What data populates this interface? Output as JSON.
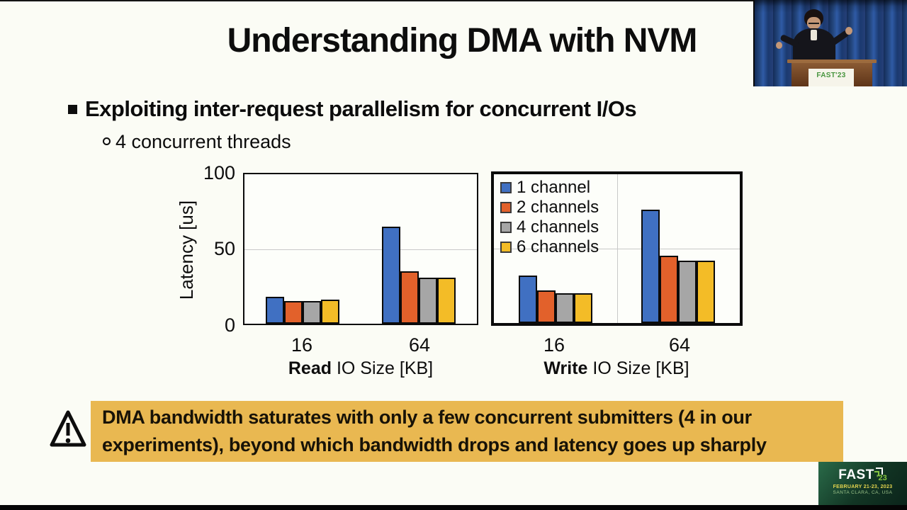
{
  "slide": {
    "title": "Understanding DMA with NVM",
    "bullet": "Exploiting inter-request parallelism for concurrent I/Os",
    "sub_bullet": "4 concurrent threads"
  },
  "colors": {
    "series": [
      "#4070C2",
      "#E2612B",
      "#A6A6A6",
      "#F3BC27"
    ],
    "warning_box": "#E9B851",
    "slide_background": "#FBFCF5",
    "logo_green": "#85C441"
  },
  "legend": {
    "items": [
      {
        "label": "1 channel",
        "color": "#4070C2"
      },
      {
        "label": "2 channels",
        "color": "#E2612B"
      },
      {
        "label": "4 channels",
        "color": "#A6A6A6"
      },
      {
        "label": "6 channels",
        "color": "#F3BC27"
      }
    ]
  },
  "chart_data": [
    {
      "type": "bar",
      "title": "Read latency vs IO size",
      "categories": [
        "16",
        "64"
      ],
      "series": [
        {
          "name": "1 channel",
          "values": [
            18,
            65
          ]
        },
        {
          "name": "2 channels",
          "values": [
            15,
            35
          ]
        },
        {
          "name": "4 channels",
          "values": [
            15,
            31
          ]
        },
        {
          "name": "6 channels",
          "values": [
            16,
            31
          ]
        }
      ],
      "xlabel_bold": "Read",
      "xlabel_rest": " IO Size [KB]",
      "ylabel": "Latency [us]",
      "yticks": [
        "100",
        "50",
        "0"
      ],
      "ylim": [
        0,
        100
      ],
      "grid": "horizontal line at 50",
      "legend_position": "none"
    },
    {
      "type": "bar",
      "title": "Write latency vs IO size",
      "categories": [
        "16",
        "64"
      ],
      "series": [
        {
          "name": "1 channel",
          "values": [
            32,
            76
          ]
        },
        {
          "name": "2 channels",
          "values": [
            22,
            45
          ]
        },
        {
          "name": "4 channels",
          "values": [
            20,
            42
          ]
        },
        {
          "name": "6 channels",
          "values": [
            20,
            42
          ]
        }
      ],
      "xlabel_bold": "Write",
      "xlabel_rest": " IO Size [KB]",
      "ylabel": "",
      "yticks": [],
      "ylim": [
        0,
        100
      ],
      "grid": "horizontal line at 50, vertical line at category boundary",
      "legend_position": "top-left"
    }
  ],
  "warning": {
    "lines": [
      "DMA bandwidth saturates with only a few concurrent submitters (4 in our",
      "experiments), beyond which bandwidth drops and latency goes up sharply"
    ]
  },
  "video": {
    "podium_text": "FAST'23"
  },
  "logo": {
    "name": "FAST",
    "year": "'23",
    "date": "FEBRUARY 21-23, 2023",
    "location": "SANTA CLARA, CA, USA"
  }
}
